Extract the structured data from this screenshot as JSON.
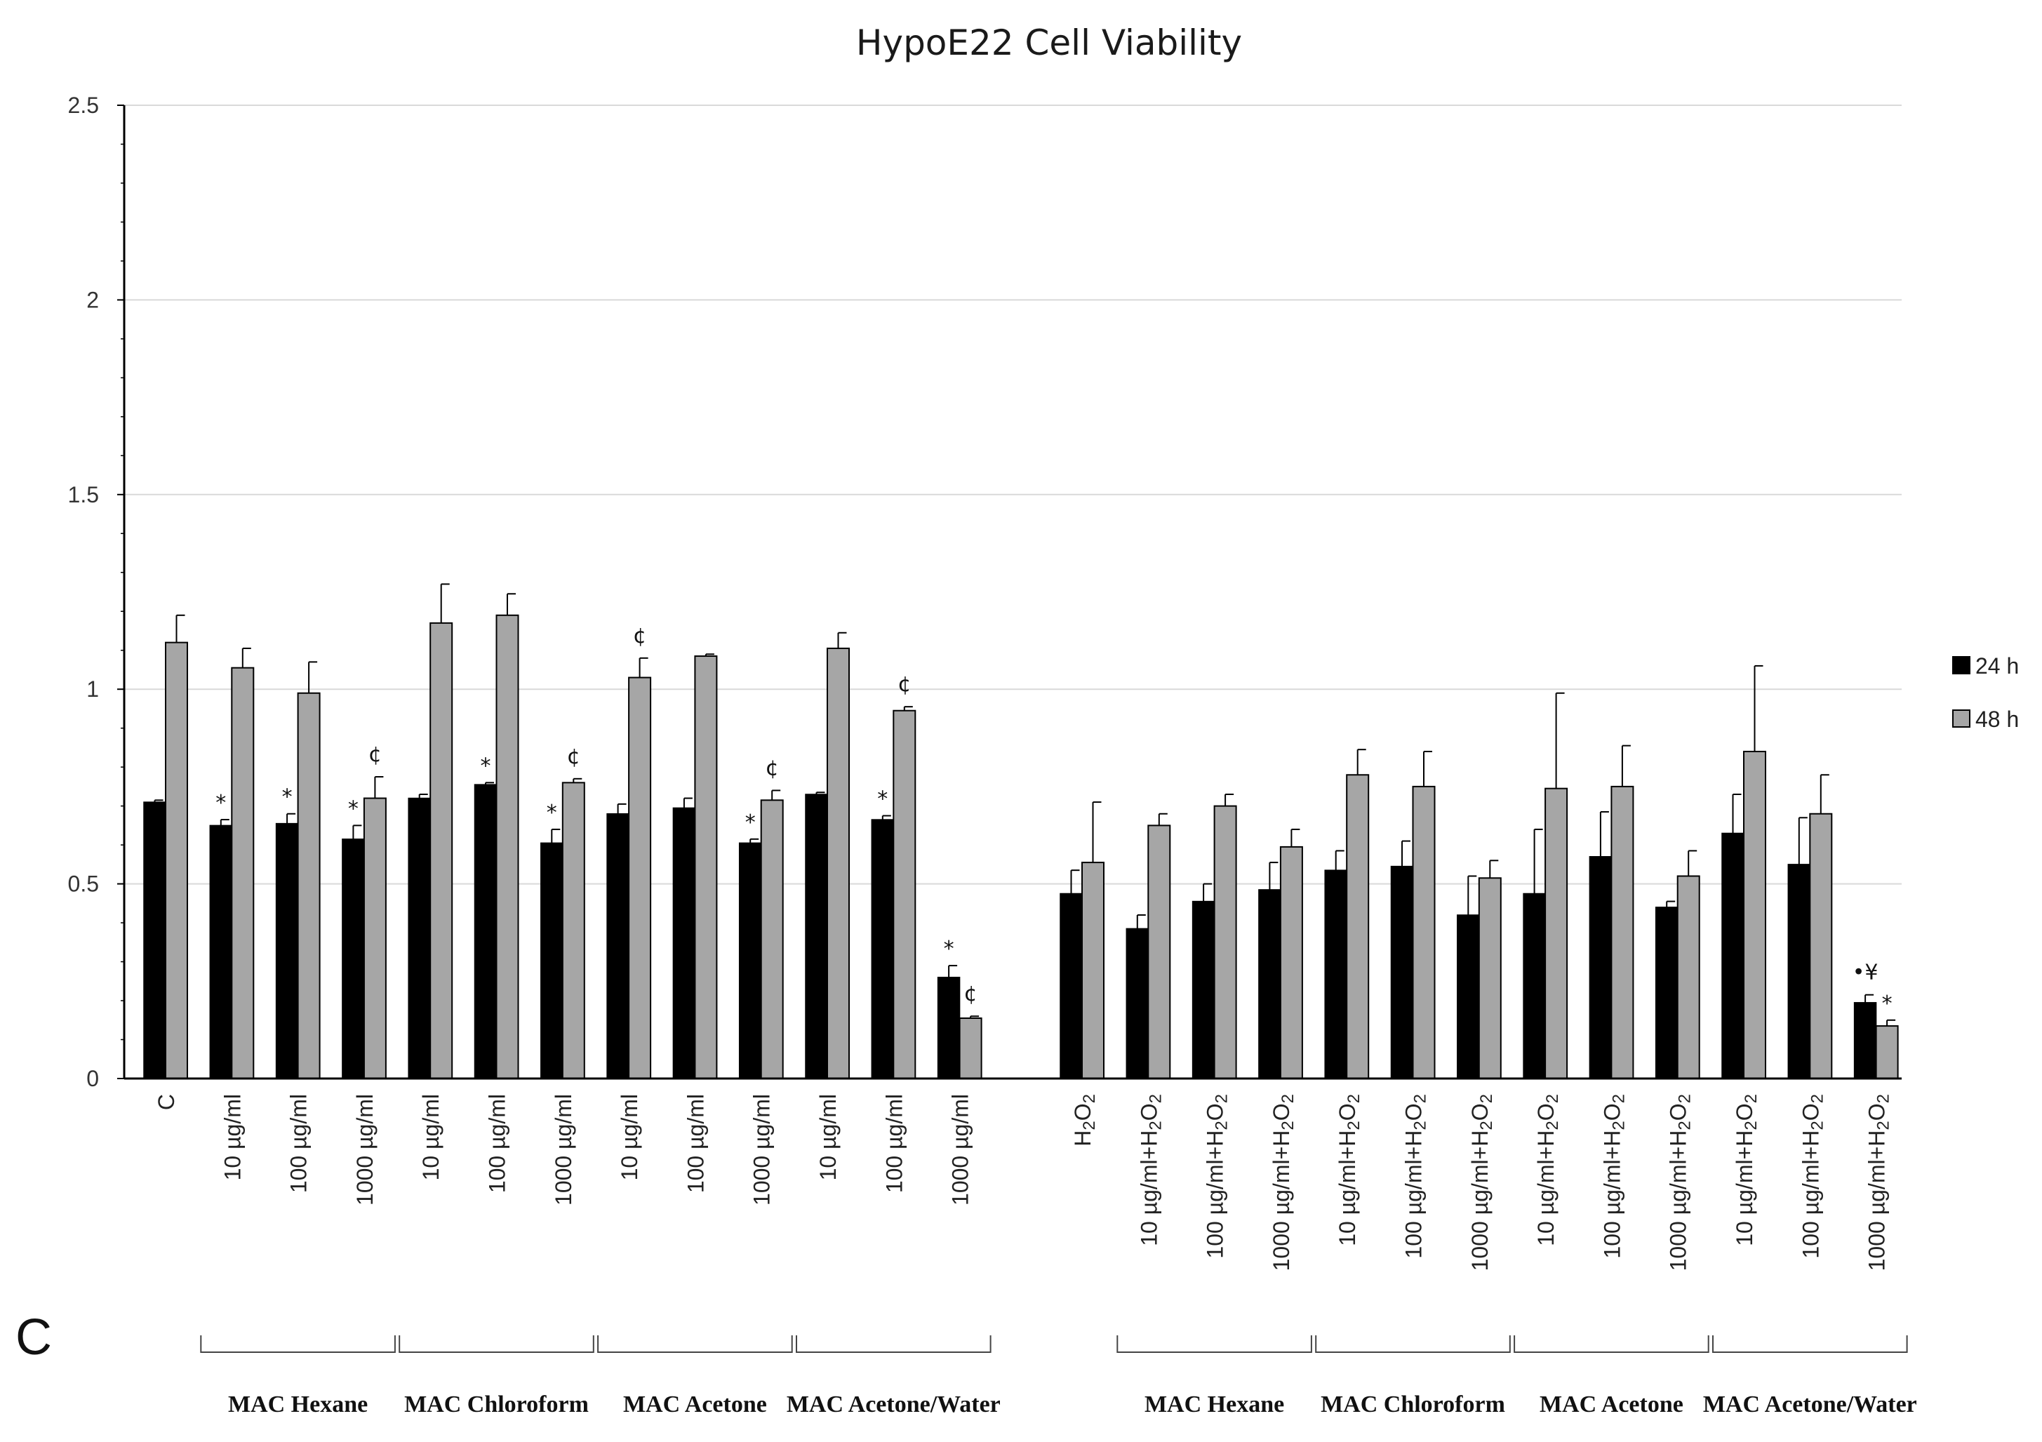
{
  "panel_label": "C",
  "colors": {
    "s24": "#000000",
    "s48": "#a6a6a6",
    "grid": "#d9d9d9",
    "axis": "#000000"
  },
  "chart_data": {
    "type": "bar",
    "title": "HypoE22 Cell Viability",
    "xlabel": "",
    "ylabel": "",
    "ylim": [
      0,
      2.5
    ],
    "yticks": [
      "0",
      "0.5",
      "1",
      "1.5",
      "2",
      "2.5"
    ],
    "grid": true,
    "legend_position": "right",
    "categories": [
      {
        "label": "C",
        "sub": ""
      },
      {
        "label": "10 µg/ml",
        "sub": ""
      },
      {
        "label": "100 µg/ml",
        "sub": ""
      },
      {
        "label": "1000 µg/ml",
        "sub": ""
      },
      {
        "label": "10 µg/ml",
        "sub": ""
      },
      {
        "label": "100 µg/ml",
        "sub": ""
      },
      {
        "label": "1000 µg/ml",
        "sub": ""
      },
      {
        "label": "10 µg/ml",
        "sub": ""
      },
      {
        "label": "100 µg/ml",
        "sub": ""
      },
      {
        "label": "1000 µg/ml",
        "sub": ""
      },
      {
        "label": "10 µg/ml",
        "sub": ""
      },
      {
        "label": "100 µg/ml",
        "sub": ""
      },
      {
        "label": "1000 µg/ml",
        "sub": ""
      },
      {
        "label": "H",
        "sub": "2",
        "label2": "O",
        "sub2": "2",
        "prefix": ""
      },
      {
        "label": "10 µg/ml+H",
        "sub": "2",
        "label2": "O",
        "sub2": "2"
      },
      {
        "label": "100 µg/ml+H",
        "sub": "2",
        "label2": "O",
        "sub2": "2"
      },
      {
        "label": "1000 µg/ml+H",
        "sub": "2",
        "label2": "O",
        "sub2": "2"
      },
      {
        "label": "10 µg/ml+H",
        "sub": "2",
        "label2": "O",
        "sub2": "2"
      },
      {
        "label": "100 µg/ml+H",
        "sub": "2",
        "label2": "O",
        "sub2": "2"
      },
      {
        "label": "1000 µg/ml+H",
        "sub": "2",
        "label2": "O",
        "sub2": "2"
      },
      {
        "label": "10 µg/ml+H",
        "sub": "2",
        "label2": "O",
        "sub2": "2"
      },
      {
        "label": "100 µg/ml+H",
        "sub": "2",
        "label2": "O",
        "sub2": "2"
      },
      {
        "label": "1000 µg/ml+H",
        "sub": "2",
        "label2": "O",
        "sub2": "2"
      },
      {
        "label": "10 µg/ml+H",
        "sub": "2",
        "label2": "O",
        "sub2": "2"
      },
      {
        "label": "100 µg/ml+H",
        "sub": "2",
        "label2": "O",
        "sub2": "2"
      },
      {
        "label": "1000 µg/ml+H",
        "sub": "2",
        "label2": "O",
        "sub2": "2"
      }
    ],
    "series": [
      {
        "name": "24 h",
        "values": [
          0.71,
          0.65,
          0.655,
          0.615,
          0.72,
          0.755,
          0.605,
          0.68,
          0.695,
          0.605,
          0.73,
          0.665,
          0.26,
          0.475,
          0.385,
          0.455,
          0.485,
          0.535,
          0.545,
          0.42,
          0.475,
          0.57,
          0.44,
          0.63,
          0.55,
          0.195
        ],
        "errors": [
          0.005,
          0.015,
          0.025,
          0.035,
          0.01,
          0.005,
          0.035,
          0.025,
          0.025,
          0.01,
          0.005,
          0.01,
          0.03,
          0.06,
          0.035,
          0.045,
          0.07,
          0.05,
          0.065,
          0.1,
          0.165,
          0.115,
          0.015,
          0.1,
          0.12,
          0.02
        ]
      },
      {
        "name": "48 h",
        "values": [
          1.12,
          1.055,
          0.99,
          0.72,
          1.17,
          1.19,
          0.76,
          1.03,
          1.085,
          0.715,
          1.105,
          0.945,
          0.155,
          0.555,
          0.65,
          0.7,
          0.595,
          0.78,
          0.75,
          0.515,
          0.745,
          0.75,
          0.52,
          0.84,
          0.68,
          0.135
        ]
      }
    ],
    "errors48": [
      0.07,
      0.05,
      0.08,
      0.055,
      0.1,
      0.055,
      0.01,
      0.05,
      0.005,
      0.025,
      0.04,
      0.01,
      0.005,
      0.155,
      0.03,
      0.03,
      0.045,
      0.065,
      0.09,
      0.045,
      0.245,
      0.105,
      0.065,
      0.22,
      0.1,
      0.015
    ],
    "annotations": [
      {
        "cat": 1,
        "series": 0,
        "text": "*"
      },
      {
        "cat": 2,
        "series": 0,
        "text": "*"
      },
      {
        "cat": 3,
        "series": 0,
        "text": "*"
      },
      {
        "cat": 3,
        "series": 1,
        "text": "¢"
      },
      {
        "cat": 5,
        "series": 0,
        "text": "*"
      },
      {
        "cat": 6,
        "series": 0,
        "text": "*"
      },
      {
        "cat": 6,
        "series": 1,
        "text": "¢"
      },
      {
        "cat": 7,
        "series": 1,
        "text": "¢"
      },
      {
        "cat": 9,
        "series": 0,
        "text": "*"
      },
      {
        "cat": 9,
        "series": 1,
        "text": "¢"
      },
      {
        "cat": 11,
        "series": 0,
        "text": "*"
      },
      {
        "cat": 11,
        "series": 1,
        "text": "¢"
      },
      {
        "cat": 12,
        "series": 0,
        "text": "*"
      },
      {
        "cat": 12,
        "series": 1,
        "text": "¢"
      },
      {
        "cat": 25,
        "series": 0,
        "text": "•¥"
      },
      {
        "cat": 25,
        "series": 1,
        "text": "*"
      }
    ],
    "groups": [
      {
        "name": "MAC Hexane",
        "from": 1,
        "to": 3
      },
      {
        "name": "MAC Chloroform",
        "from": 4,
        "to": 6
      },
      {
        "name": "MAC Acetone",
        "from": 7,
        "to": 9
      },
      {
        "name": "MAC Acetone/Water",
        "from": 10,
        "to": 12
      },
      {
        "name": "MAC Hexane",
        "from": 14,
        "to": 16
      },
      {
        "name": "MAC Chloroform",
        "from": 17,
        "to": 19
      },
      {
        "name": "MAC Acetone",
        "from": 20,
        "to": 22
      },
      {
        "name": "MAC Acetone/Water",
        "from": 23,
        "to": 25
      }
    ]
  }
}
